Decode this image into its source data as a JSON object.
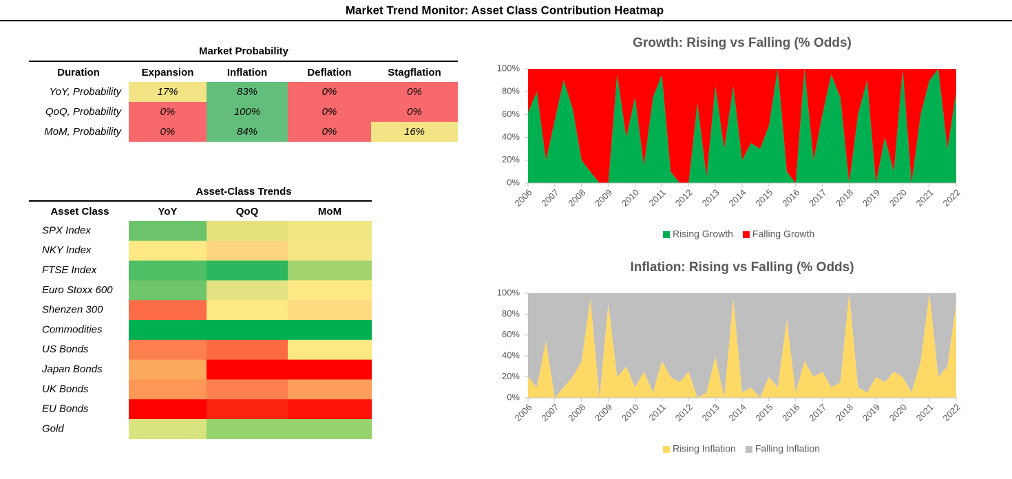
{
  "title": "Market Trend Monitor: Asset Class Contribution Heatmap",
  "probability_table": {
    "title": "Market Probability",
    "headers": [
      "Duration",
      "Expansion",
      "Inflation",
      "Deflation",
      "Stagflation"
    ],
    "rows": [
      [
        "YoY, Probability",
        "17%",
        "83%",
        "0%",
        "0%"
      ],
      [
        "QoQ, Probability",
        "0%",
        "100%",
        "0%",
        "0%"
      ],
      [
        "MoM, Probability",
        "0%",
        "84%",
        "0%",
        "16%"
      ]
    ],
    "colors": [
      [
        "#f2e384",
        "#63be7b",
        "#f8696b",
        "#f8696b"
      ],
      [
        "#f8696b",
        "#63be7b",
        "#f8696b",
        "#f8696b"
      ],
      [
        "#f8696b",
        "#63be7b",
        "#f8696b",
        "#f2e384"
      ]
    ]
  },
  "trends_table": {
    "title": "Asset-Class Trends",
    "headers": [
      "Asset Class",
      "YoY",
      "QoQ",
      "MoM"
    ],
    "rows": [
      "SPX Index",
      "NKY Index",
      "FTSE Index",
      "Euro Stoxx 600",
      "Shenzen 300",
      "Commodities",
      "US Bonds",
      "Japan Bonds",
      "UK Bonds",
      "EU Bonds",
      "Gold"
    ],
    "colors": [
      [
        "#6cc46a",
        "#e6e27e",
        "#f0e784"
      ],
      [
        "#fee883",
        "#fed47f",
        "#f6e784"
      ],
      [
        "#4fbf65",
        "#2cb75f",
        "#a3d46f"
      ],
      [
        "#6ec56a",
        "#e2e282",
        "#fde884"
      ],
      [
        "#fc6c47",
        "#fee883",
        "#fedb80"
      ],
      [
        "#00b050",
        "#00b050",
        "#00b050"
      ],
      [
        "#fd7f4e",
        "#fc6b44",
        "#fee883"
      ],
      [
        "#fda95e",
        "#ff0000",
        "#ff0000"
      ],
      [
        "#fd9656",
        "#fd7f4e",
        "#fd9e5a"
      ],
      [
        "#ff0000",
        "#fe2410",
        "#ff1108"
      ],
      [
        "#d9e47f",
        "#96d26d",
        "#96d26d"
      ]
    ]
  },
  "chart_data": [
    {
      "type": "stacked_area",
      "title": "Growth: Rising vs Falling (% Odds)",
      "x": [
        2006,
        2006.33,
        2006.67,
        2007,
        2007.33,
        2007.67,
        2008,
        2008.33,
        2008.67,
        2009,
        2009.33,
        2009.67,
        2010,
        2010.33,
        2010.67,
        2011,
        2011.33,
        2011.67,
        2012,
        2012.33,
        2012.67,
        2013,
        2013.33,
        2013.67,
        2014,
        2014.33,
        2014.67,
        2015,
        2015.33,
        2015.67,
        2016,
        2016.33,
        2016.67,
        2017,
        2017.33,
        2017.67,
        2018,
        2018.33,
        2018.67,
        2019,
        2019.33,
        2019.67,
        2020,
        2020.33,
        2020.67,
        2021,
        2021.33,
        2021.67,
        2022
      ],
      "series": [
        {
          "name": "Rising Growth",
          "color": "#00b050",
          "values": [
            62,
            80,
            20,
            55,
            90,
            65,
            20,
            10,
            0,
            0,
            95,
            40,
            75,
            15,
            75,
            95,
            10,
            0,
            0,
            70,
            5,
            85,
            30,
            85,
            20,
            35,
            30,
            50,
            100,
            10,
            0,
            100,
            20,
            60,
            95,
            75,
            0,
            60,
            90,
            0,
            40,
            10,
            100,
            0,
            60,
            90,
            100,
            30,
            80
          ]
        },
        {
          "name": "Falling Growth",
          "color": "#ff0000",
          "values": [
            38,
            20,
            80,
            45,
            10,
            35,
            80,
            90,
            100,
            100,
            5,
            60,
            25,
            85,
            25,
            5,
            90,
            100,
            100,
            30,
            95,
            15,
            70,
            15,
            80,
            65,
            70,
            50,
            0,
            90,
            100,
            0,
            80,
            40,
            5,
            25,
            100,
            40,
            10,
            100,
            60,
            90,
            0,
            100,
            40,
            10,
            0,
            70,
            20
          ]
        }
      ],
      "xlim": [
        2006,
        2022
      ],
      "xticks": [
        2006,
        2007,
        2008,
        2009,
        2010,
        2011,
        2012,
        2013,
        2014,
        2015,
        2016,
        2017,
        2018,
        2019,
        2020,
        2021,
        2022
      ],
      "ylim": [
        0,
        100
      ],
      "yticks": [
        {
          "value": 0,
          "label": "0%"
        },
        {
          "value": 20,
          "label": "20%"
        },
        {
          "value": 40,
          "label": "40%"
        },
        {
          "value": 60,
          "label": "60%"
        },
        {
          "value": 80,
          "label": "80%"
        },
        {
          "value": 100,
          "label": "100%"
        }
      ]
    },
    {
      "type": "stacked_area",
      "title": "Inflation: Rising vs Falling  (% Odds)",
      "x": [
        2006,
        2006.33,
        2006.67,
        2007,
        2007.33,
        2007.67,
        2008,
        2008.33,
        2008.67,
        2009,
        2009.33,
        2009.67,
        2010,
        2010.33,
        2010.67,
        2011,
        2011.33,
        2011.67,
        2012,
        2012.33,
        2012.67,
        2013,
        2013.33,
        2013.67,
        2014,
        2014.33,
        2014.67,
        2015,
        2015.33,
        2015.67,
        2016,
        2016.33,
        2016.67,
        2017,
        2017.33,
        2017.67,
        2018,
        2018.33,
        2018.67,
        2019,
        2019.33,
        2019.67,
        2020,
        2020.33,
        2020.67,
        2021,
        2021.33,
        2021.67,
        2022
      ],
      "series": [
        {
          "name": "Rising Inflation",
          "color": "#ffd966",
          "values": [
            20,
            10,
            55,
            0,
            10,
            20,
            35,
            95,
            0,
            90,
            20,
            30,
            10,
            25,
            5,
            35,
            20,
            15,
            25,
            0,
            5,
            40,
            0,
            95,
            5,
            10,
            0,
            20,
            10,
            75,
            5,
            35,
            20,
            25,
            10,
            15,
            100,
            10,
            5,
            20,
            15,
            25,
            20,
            5,
            35,
            100,
            20,
            30,
            90
          ]
        },
        {
          "name": "Falling Inflation",
          "color": "#bfbfbf",
          "values": [
            80,
            90,
            45,
            100,
            90,
            80,
            65,
            5,
            100,
            10,
            80,
            70,
            90,
            75,
            95,
            65,
            80,
            85,
            75,
            100,
            95,
            60,
            100,
            5,
            95,
            90,
            100,
            80,
            90,
            25,
            95,
            65,
            80,
            75,
            90,
            85,
            0,
            90,
            95,
            80,
            85,
            75,
            80,
            95,
            65,
            0,
            80,
            70,
            10
          ]
        }
      ],
      "xlim": [
        2006,
        2022
      ],
      "xticks": [
        2006,
        2007,
        2008,
        2009,
        2010,
        2011,
        2012,
        2013,
        2014,
        2015,
        2016,
        2017,
        2018,
        2019,
        2020,
        2021,
        2022
      ],
      "ylim": [
        0,
        100
      ],
      "yticks": [
        {
          "value": 0,
          "label": "0%"
        },
        {
          "value": 20,
          "label": "20%"
        },
        {
          "value": 40,
          "label": "40%"
        },
        {
          "value": 60,
          "label": "60%"
        },
        {
          "value": 80,
          "label": "80%"
        },
        {
          "value": 100,
          "label": "100%"
        }
      ]
    }
  ]
}
